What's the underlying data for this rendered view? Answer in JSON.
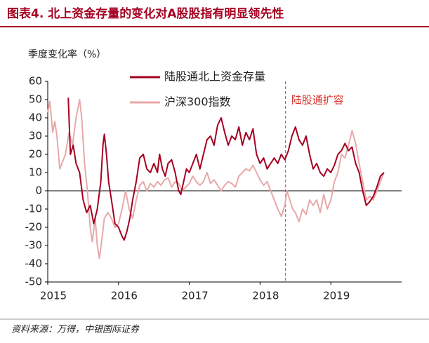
{
  "chart_data": {
    "type": "line",
    "title": "图表4. 北上资金存量的变化对A股股指有明显领先性",
    "y_label": "季度变化率（%）",
    "source": "资料来源：万得，中银国际证券",
    "xlim": [
      2015,
      2020
    ],
    "xticks": [
      2015,
      2016,
      2017,
      2018,
      2019
    ],
    "ylim": [
      -50,
      60
    ],
    "yticks": [
      -50,
      -40,
      -30,
      -20,
      -10,
      0,
      10,
      20,
      30,
      40,
      50,
      60
    ],
    "grid": false,
    "annotation": {
      "text": "陆股通扩容",
      "x": 2018.36,
      "color": "#d9312b"
    },
    "series": [
      {
        "name": "陆股通北上资金存量",
        "color": "#a50021",
        "x": [
          2015.29,
          2015.32,
          2015.36,
          2015.4,
          2015.45,
          2015.5,
          2015.55,
          2015.6,
          2015.65,
          2015.7,
          2015.75,
          2015.78,
          2015.8,
          2015.83,
          2015.86,
          2015.9,
          2015.95,
          2016.0,
          2016.05,
          2016.08,
          2016.12,
          2016.16,
          2016.2,
          2016.25,
          2016.3,
          2016.35,
          2016.4,
          2016.45,
          2016.5,
          2016.55,
          2016.58,
          2016.62,
          2016.66,
          2016.7,
          2016.75,
          2016.8,
          2016.85,
          2016.88,
          2016.92,
          2016.96,
          2017.0,
          2017.05,
          2017.1,
          2017.15,
          2017.2,
          2017.25,
          2017.3,
          2017.35,
          2017.4,
          2017.45,
          2017.5,
          2017.55,
          2017.6,
          2017.65,
          2017.7,
          2017.75,
          2017.8,
          2017.85,
          2017.9,
          2017.95,
          2018.0,
          2018.05,
          2018.1,
          2018.15,
          2018.2,
          2018.25,
          2018.3,
          2018.35,
          2018.4,
          2018.45,
          2018.5,
          2018.55,
          2018.6,
          2018.65,
          2018.7,
          2018.75,
          2018.8,
          2018.85,
          2018.9,
          2018.95,
          2019.0,
          2019.05,
          2019.1,
          2019.15,
          2019.2,
          2019.25,
          2019.3,
          2019.35,
          2019.4,
          2019.45,
          2019.5,
          2019.55,
          2019.6,
          2019.65,
          2019.7,
          2019.75
        ],
        "values": [
          51,
          20,
          25,
          15,
          10,
          -5,
          -12,
          -8,
          -18,
          -10,
          5,
          25,
          31,
          20,
          5,
          -5,
          -18,
          -20,
          -25,
          -27,
          -22,
          -15,
          -5,
          5,
          18,
          20,
          12,
          10,
          15,
          10,
          20,
          12,
          8,
          15,
          17,
          10,
          0,
          -2,
          5,
          12,
          10,
          15,
          20,
          12,
          20,
          28,
          30,
          25,
          36,
          40,
          32,
          25,
          30,
          28,
          35,
          25,
          32,
          28,
          34,
          20,
          15,
          18,
          12,
          15,
          18,
          15,
          20,
          17,
          22,
          30,
          35,
          28,
          25,
          30,
          20,
          12,
          15,
          10,
          8,
          12,
          10,
          14,
          20,
          22,
          26,
          22,
          24,
          15,
          10,
          0,
          -8,
          -6,
          -3,
          2,
          8,
          10
        ]
      },
      {
        "name": "沪深300指数",
        "color": "#e8a9a9",
        "x": [
          2015.0,
          2015.03,
          2015.07,
          2015.1,
          2015.13,
          2015.17,
          2015.2,
          2015.25,
          2015.3,
          2015.35,
          2015.4,
          2015.45,
          2015.48,
          2015.52,
          2015.56,
          2015.6,
          2015.63,
          2015.67,
          2015.7,
          2015.73,
          2015.77,
          2015.8,
          2015.85,
          2015.9,
          2015.95,
          2016.0,
          2016.05,
          2016.1,
          2016.15,
          2016.2,
          2016.25,
          2016.3,
          2016.35,
          2016.4,
          2016.45,
          2016.5,
          2016.55,
          2016.6,
          2016.65,
          2016.7,
          2016.75,
          2016.8,
          2016.85,
          2016.9,
          2016.95,
          2017.0,
          2017.05,
          2017.1,
          2017.15,
          2017.2,
          2017.25,
          2017.3,
          2017.35,
          2017.4,
          2017.45,
          2017.5,
          2017.55,
          2017.6,
          2017.65,
          2017.7,
          2017.75,
          2017.8,
          2017.85,
          2017.9,
          2017.95,
          2018.0,
          2018.05,
          2018.1,
          2018.15,
          2018.2,
          2018.25,
          2018.3,
          2018.35,
          2018.38,
          2018.42,
          2018.46,
          2018.5,
          2018.55,
          2018.6,
          2018.65,
          2018.7,
          2018.75,
          2018.8,
          2018.85,
          2018.9,
          2018.95,
          2019.0,
          2019.05,
          2019.1,
          2019.15,
          2019.2,
          2019.25,
          2019.3,
          2019.35,
          2019.4,
          2019.45,
          2019.5,
          2019.55,
          2019.6,
          2019.65,
          2019.7,
          2019.75
        ],
        "values": [
          43,
          49,
          32,
          38,
          30,
          12,
          15,
          20,
          32,
          25,
          40,
          50,
          40,
          15,
          0,
          -20,
          -28,
          -15,
          -30,
          -37,
          -25,
          -15,
          -12,
          -15,
          -20,
          -18,
          -10,
          0,
          -10,
          -15,
          -5,
          3,
          5,
          0,
          4,
          2,
          5,
          3,
          6,
          7,
          2,
          5,
          4,
          0,
          2,
          4,
          8,
          5,
          3,
          5,
          10,
          4,
          6,
          3,
          0,
          3,
          5,
          4,
          2,
          8,
          10,
          12,
          11,
          14,
          10,
          6,
          3,
          5,
          0,
          -5,
          -10,
          -14,
          -8,
          0,
          -5,
          -10,
          -12,
          -17,
          -10,
          -13,
          -5,
          -8,
          -5,
          -12,
          -2,
          -10,
          -5,
          5,
          10,
          20,
          18,
          25,
          33,
          26,
          15,
          5,
          -5,
          -3,
          -5,
          0,
          5,
          10
        ]
      }
    ]
  }
}
